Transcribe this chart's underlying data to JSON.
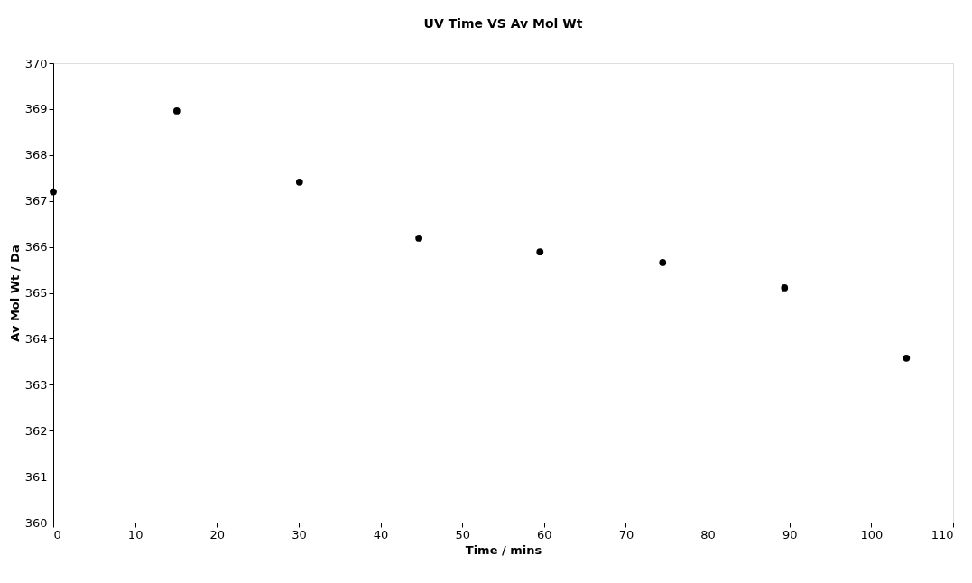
{
  "chart_data": {
    "type": "scatter",
    "title": "UV Time VS Av Mol Wt",
    "xlabel": "Time / mins",
    "ylabel": "Av Mol Wt / Da",
    "x": [
      0,
      15.1,
      30.1,
      44.7,
      59.5,
      74.5,
      89.4,
      104.3
    ],
    "series": [
      {
        "color": "#000000",
        "values": [
          367.2,
          368.96,
          367.41,
          366.19,
          365.89,
          365.66,
          365.11,
          363.58
        ]
      }
    ],
    "xlim": [
      0,
      110
    ],
    "xticks": [
      0,
      10,
      20,
      30,
      40,
      50,
      60,
      70,
      80,
      90,
      100,
      110
    ],
    "ylim": [
      360,
      370
    ],
    "yticks": [
      360,
      361,
      362,
      363,
      364,
      365,
      366,
      367,
      368,
      369,
      370
    ],
    "grid": false,
    "legend": false,
    "marker": "circle"
  }
}
